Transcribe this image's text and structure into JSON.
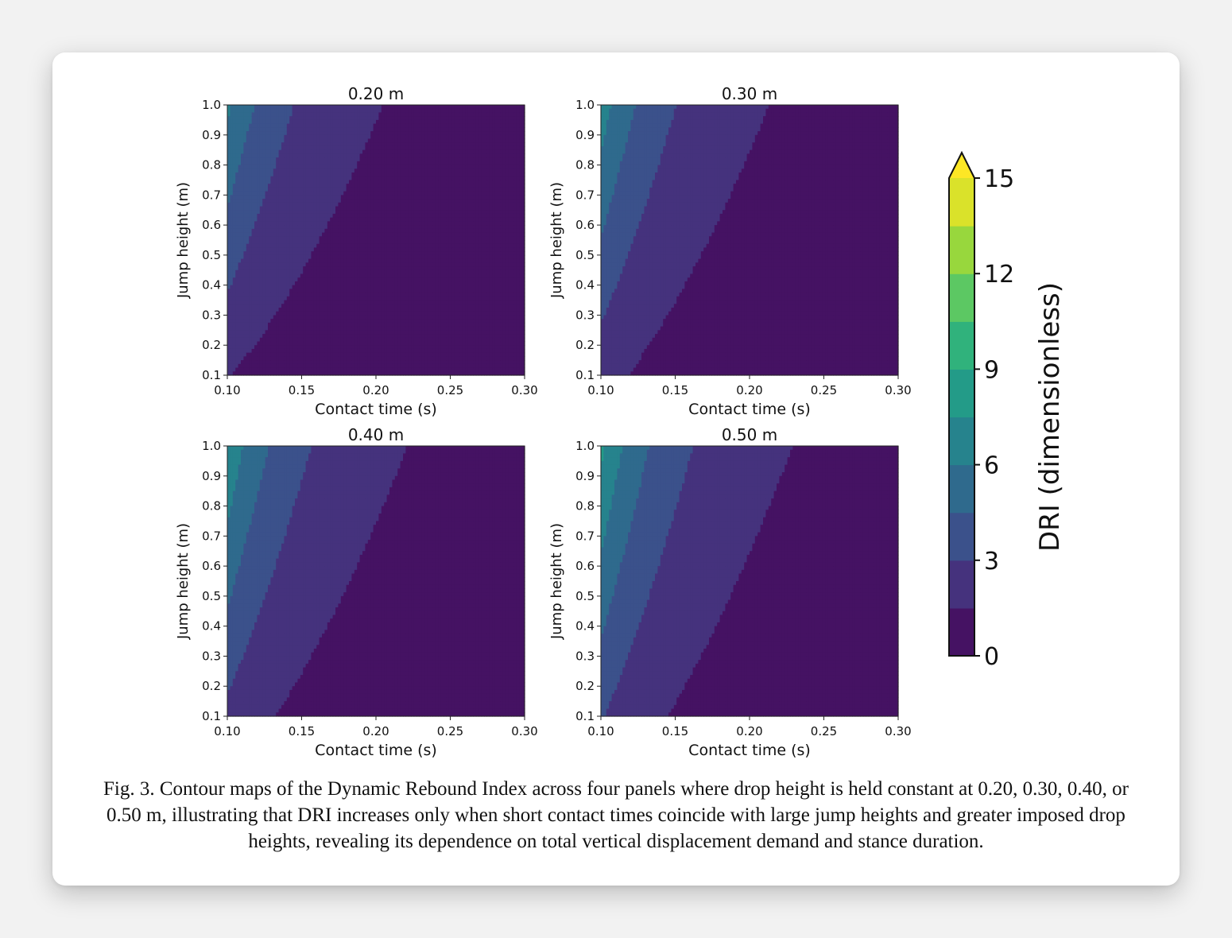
{
  "chart_data": {
    "type": "heatmap",
    "subtype": "filled-contour",
    "colormap": "viridis",
    "grid": false,
    "panels": [
      {
        "title": "0.20 m",
        "drop_height": 0.2
      },
      {
        "title": "0.30 m",
        "drop_height": 0.3
      },
      {
        "title": "0.40 m",
        "drop_height": 0.4
      },
      {
        "title": "0.50 m",
        "drop_height": 0.5
      }
    ],
    "xlabel": "Contact time (s)",
    "ylabel": "Jump height (m)",
    "xlim": [
      0.1,
      0.3
    ],
    "ylim": [
      0.1,
      1.0
    ],
    "xticks": [
      "0.10",
      "0.15",
      "0.20",
      "0.25",
      "0.30"
    ],
    "yticks": [
      "0.1",
      "0.2",
      "0.3",
      "0.4",
      "0.5",
      "0.6",
      "0.7",
      "0.8",
      "0.9",
      "1.0"
    ],
    "colorbar": {
      "label": "DRI (dimensionless)",
      "ticks": [
        "0",
        "3",
        "6",
        "9",
        "12",
        "15"
      ],
      "range": [
        0,
        15
      ],
      "extend": "max"
    }
  },
  "caption": "Fig. 3. Contour maps of the Dynamic Rebound Index across four panels where drop height is held constant at 0.20, 0.30, 0.40, or 0.50 m, illustrating that DRI increases only when short contact times coincide with large jump heights and greater imposed drop heights, revealing its dependence on total vertical displacement demand and stance duration."
}
